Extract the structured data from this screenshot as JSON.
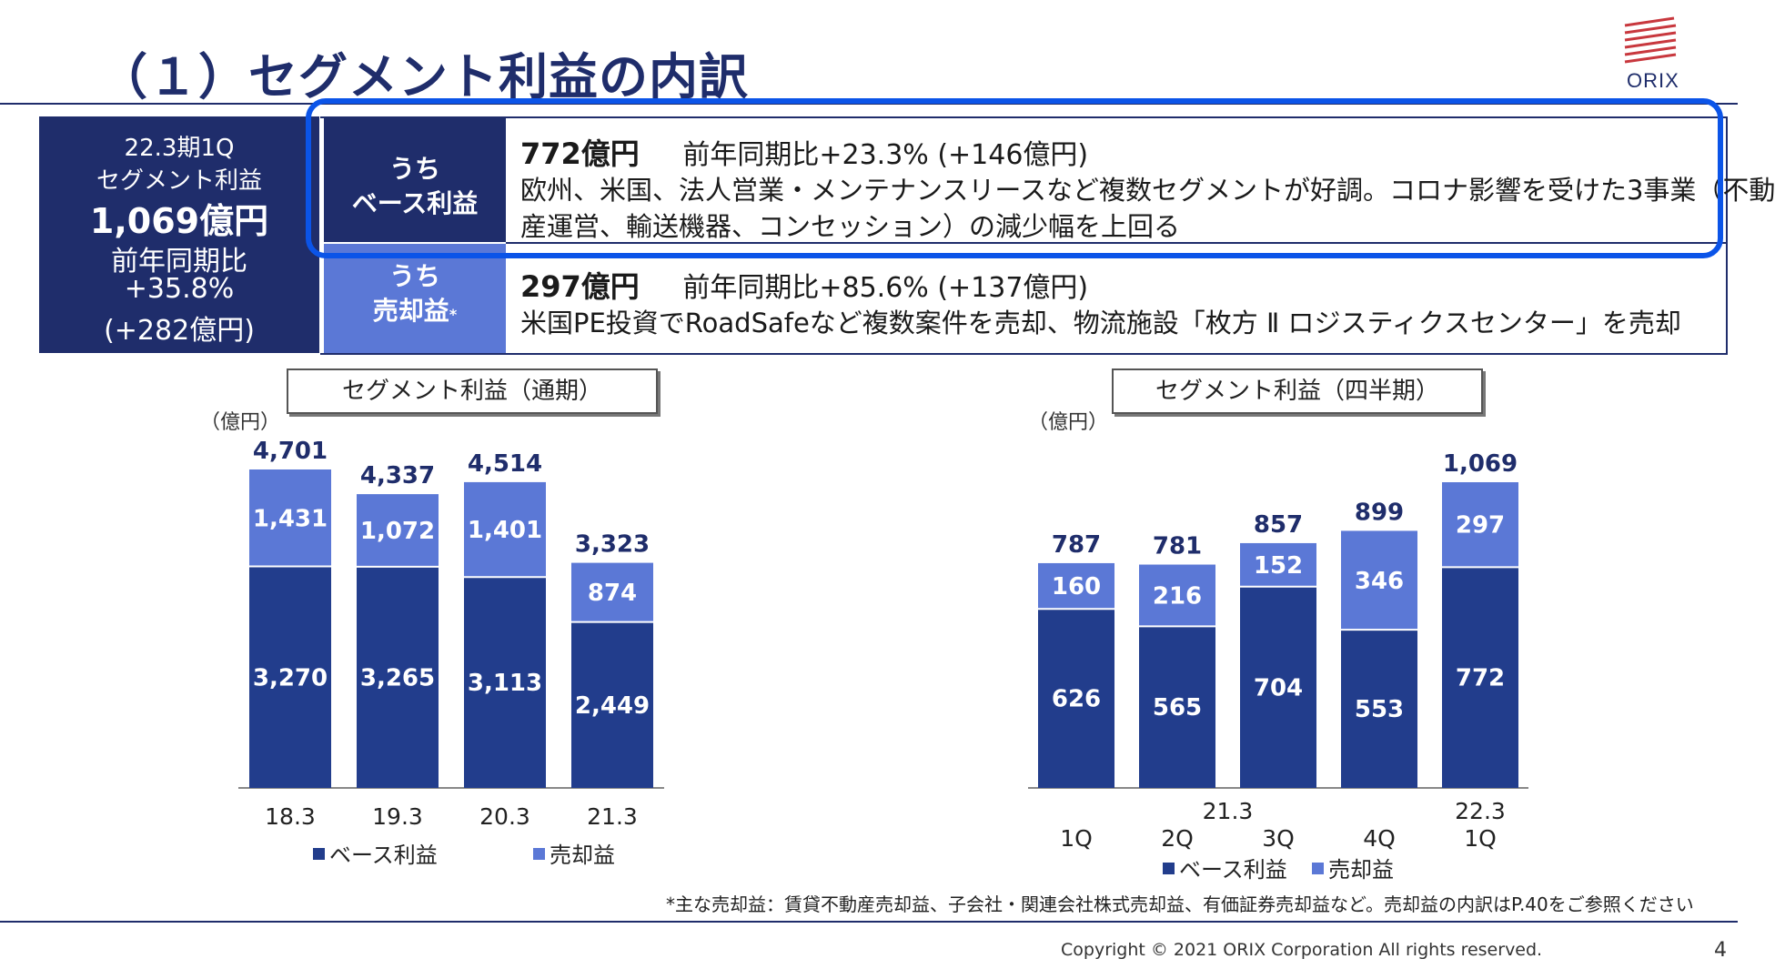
{
  "title": "（１）セグメント利益の内訳",
  "logo_text": "ORIX",
  "summary": {
    "period": "22.3期1Q",
    "label": "セグメント利益",
    "value": "1,069億円",
    "yoy_label": "前年同期比",
    "yoy_pct": "+35.8%",
    "yoy_abs": "(+282億円)"
  },
  "base_row": {
    "label_line1": "うち",
    "label_line2": "ベース利益",
    "value": "772億円",
    "yoy": "前年同期比+23.3% (+146億円)",
    "desc1": "欧州、米国、法人営業・メンテナンスリースなど複数セグメントが好調。コロナ影響を受けた3事業（不動",
    "desc2": "産運営、輸送機器、コンセッション）の減少幅を上回る"
  },
  "gain_row": {
    "label_line1": "うち",
    "label_line2": "売却益",
    "label_mark": "*",
    "value": "297億円",
    "yoy": "前年同期比+85.6% (+137億円)",
    "desc1": "米国PE投資でRoadSafeなど複数案件を売却、物流施設「枚方 Ⅱ ロジスティクスセンター」を売却"
  },
  "colors": {
    "base": "#223d8c",
    "gain": "#5b78d6",
    "dark": "#1f2d6b",
    "highlight": "#0b54e8"
  },
  "chart_data": [
    {
      "type": "bar",
      "title": "セグメント利益（通期）",
      "unit_label": "（億円）",
      "stacked": true,
      "categories": [
        "18.3",
        "19.3",
        "20.3",
        "21.3"
      ],
      "series": [
        {
          "name": "ベース利益",
          "values": [
            3270,
            3265,
            3113,
            2449
          ],
          "labels": [
            "3,270",
            "3,265",
            "3,113",
            "2,449"
          ]
        },
        {
          "name": "売却益",
          "values": [
            1431,
            1072,
            1401,
            874
          ],
          "labels": [
            "1,431",
            "1,072",
            "1,401",
            "874"
          ]
        }
      ],
      "totals": [
        "4,701",
        "4,337",
        "4,514",
        "3,323"
      ],
      "ylim": [
        0,
        4701
      ]
    },
    {
      "type": "bar",
      "title": "セグメント利益（四半期）",
      "unit_label": "（億円）",
      "stacked": true,
      "categories": [
        "1Q",
        "2Q",
        "3Q",
        "4Q",
        "1Q"
      ],
      "category_groups": [
        {
          "label": "21.3",
          "span": [
            0,
            3
          ]
        },
        {
          "label": "22.3",
          "span": [
            4,
            4
          ]
        }
      ],
      "series": [
        {
          "name": "ベース利益",
          "values": [
            626,
            565,
            704,
            553,
            772
          ],
          "labels": [
            "626",
            "565",
            "704",
            "553",
            "772"
          ]
        },
        {
          "name": "売却益",
          "values": [
            160,
            216,
            152,
            346,
            297
          ],
          "labels": [
            "160",
            "216",
            "152",
            "346",
            "297"
          ]
        }
      ],
      "totals": [
        "787",
        "781",
        "857",
        "899",
        "1,069"
      ],
      "ylim": [
        0,
        1069
      ]
    }
  ],
  "footnote": "*主な売却益：賃貸不動産売却益、子会社・関連会社株式売却益、有価証券売却益など。売却益の内訳はP.40をご参照ください",
  "copyright": "Copyright © 2021 ORIX Corporation  All rights reserved.",
  "page_number": "4"
}
